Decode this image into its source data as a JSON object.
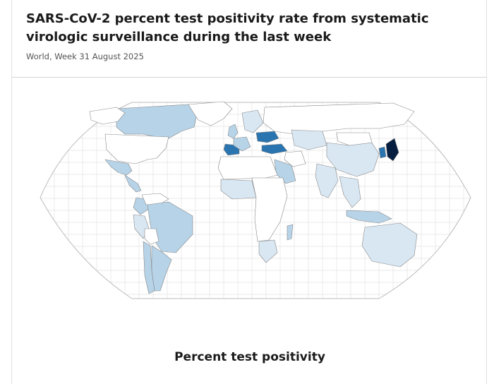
{
  "header": {
    "title": "SARS-CoV-2 percent test positivity rate from systematic virologic surveillance during the last week",
    "subtitle": "World, Week 31 August 2025"
  },
  "legend": {
    "title": "Percent test positivity"
  },
  "colors": {
    "no_data": "#ffffff",
    "very_low": "#d9e7f3",
    "low": "#b6d3e8",
    "medium": "#5a9ec9",
    "high": "#2a74b0",
    "very_high": "#0d3d73",
    "darkest": "#061e40",
    "border": "#888888",
    "graticule": "#e3e3e3"
  },
  "map": {
    "projection": "robinson",
    "regions": [
      {
        "name": "canada",
        "level": "low"
      },
      {
        "name": "alaska",
        "level": "no_data"
      },
      {
        "name": "usa",
        "level": "no_data"
      },
      {
        "name": "greenland",
        "level": "no_data"
      },
      {
        "name": "mexico",
        "level": "low"
      },
      {
        "name": "central-america",
        "level": "low"
      },
      {
        "name": "colombia",
        "level": "low"
      },
      {
        "name": "venezuela",
        "level": "no_data"
      },
      {
        "name": "peru",
        "level": "very_low"
      },
      {
        "name": "brazil",
        "level": "low"
      },
      {
        "name": "bolivia",
        "level": "no_data"
      },
      {
        "name": "argentina",
        "level": "low"
      },
      {
        "name": "chile",
        "level": "low"
      },
      {
        "name": "spain",
        "level": "high"
      },
      {
        "name": "france",
        "level": "low"
      },
      {
        "name": "uk",
        "level": "low"
      },
      {
        "name": "scandinavia",
        "level": "very_low"
      },
      {
        "name": "ukraine",
        "level": "high"
      },
      {
        "name": "turkey",
        "level": "high"
      },
      {
        "name": "russia",
        "level": "no_data"
      },
      {
        "name": "kazakhstan",
        "level": "very_low"
      },
      {
        "name": "saudi-arabia",
        "level": "low"
      },
      {
        "name": "iran",
        "level": "no_data"
      },
      {
        "name": "india",
        "level": "very_low"
      },
      {
        "name": "china",
        "level": "very_low"
      },
      {
        "name": "mongolia",
        "level": "no_data"
      },
      {
        "name": "japan",
        "level": "darkest"
      },
      {
        "name": "korea",
        "level": "high"
      },
      {
        "name": "southeast-asia",
        "level": "very_low"
      },
      {
        "name": "indonesia",
        "level": "low"
      },
      {
        "name": "australia",
        "level": "very_low"
      },
      {
        "name": "africa-north",
        "level": "no_data"
      },
      {
        "name": "west-africa",
        "level": "very_low"
      },
      {
        "name": "central-africa",
        "level": "no_data"
      },
      {
        "name": "south-africa",
        "level": "very_low"
      },
      {
        "name": "madagascar",
        "level": "low"
      }
    ]
  }
}
